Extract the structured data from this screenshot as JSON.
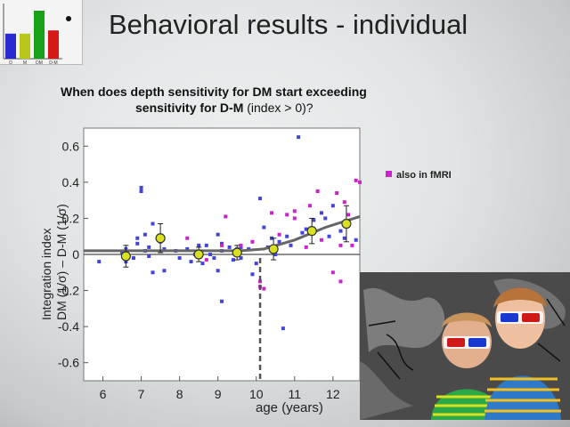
{
  "slide": {
    "title": "Behavioral results - individual",
    "question_bold_1": "When does depth sensitivity for DM start exceeding",
    "question_bold_2": "sensitivity for D-M",
    "question_plain_2": " (index > 0)?"
  },
  "thumbnail": {
    "bar_labels": [
      "D",
      "M",
      "DM",
      "D-M"
    ],
    "bar_colors": [
      "#2a2ad0",
      "#b8c818",
      "#18a018",
      "#d81818"
    ],
    "bar_values": [
      0.47,
      0.47,
      0.9,
      0.53
    ]
  },
  "legend": {
    "marker_color": "#d020d0",
    "label": "also in fMRI"
  },
  "chart_data": {
    "type": "scatter",
    "ylabel_line1": "Integration index",
    "ylabel_line2": "DM (1/σ) – D-M (1/σ)",
    "xlabel": "age (years)",
    "xlim": [
      5.5,
      12.7
    ],
    "ylim": [
      -0.7,
      0.7
    ],
    "x_ticks": [
      6,
      7,
      8,
      9,
      10,
      11,
      12
    ],
    "y_ticks": [
      0.6,
      0.4,
      0.2,
      0,
      -0.2,
      -0.4,
      -0.6
    ],
    "reference_line_y": 0,
    "threshold_age": 10.1,
    "colors": {
      "individual": "#4444dd",
      "fmri": "#cc22cc",
      "mean": "#d8e020",
      "fit": "#666666"
    },
    "individuals": [
      [
        5.9,
        -0.04
      ],
      [
        6.5,
        0.01
      ],
      [
        6.6,
        -0.04
      ],
      [
        6.6,
        0.03
      ],
      [
        6.8,
        -0.02
      ],
      [
        6.9,
        0.09
      ],
      [
        6.9,
        0.06
      ],
      [
        7.0,
        0.35
      ],
      [
        7.0,
        0.37
      ],
      [
        7.1,
        0.11
      ],
      [
        7.1,
        0.02
      ],
      [
        7.2,
        0.04
      ],
      [
        7.2,
        -0.01
      ],
      [
        7.3,
        0.17
      ],
      [
        7.3,
        -0.1
      ],
      [
        7.5,
        0.07
      ],
      [
        7.6,
        -0.09
      ],
      [
        7.6,
        0.03
      ],
      [
        7.9,
        0.02
      ],
      [
        8.0,
        -0.02
      ],
      [
        8.2,
        0.03
      ],
      [
        8.3,
        -0.04
      ],
      [
        8.4,
        0.0
      ],
      [
        8.5,
        0.05
      ],
      [
        8.6,
        -0.05
      ],
      [
        8.7,
        0.05
      ],
      [
        8.8,
        0.0
      ],
      [
        8.9,
        -0.02
      ],
      [
        9.0,
        -0.09
      ],
      [
        9.0,
        0.11
      ],
      [
        9.1,
        0.06
      ],
      [
        9.1,
        -0.26
      ],
      [
        9.1,
        0.02
      ],
      [
        9.3,
        0.04
      ],
      [
        9.4,
        -0.03
      ],
      [
        9.5,
        0.03
      ],
      [
        9.6,
        -0.02
      ],
      [
        9.6,
        0.04
      ],
      [
        9.8,
        0.03
      ],
      [
        9.9,
        -0.11
      ],
      [
        10.0,
        -0.05
      ],
      [
        10.1,
        0.31
      ],
      [
        10.2,
        0.15
      ],
      [
        10.3,
        0.04
      ],
      [
        10.4,
        0.09
      ],
      [
        10.5,
        0.0
      ],
      [
        10.6,
        0.07
      ],
      [
        10.7,
        -0.41
      ],
      [
        10.8,
        0.1
      ],
      [
        10.9,
        0.05
      ],
      [
        11.1,
        0.65
      ],
      [
        11.2,
        0.12
      ],
      [
        11.3,
        0.14
      ],
      [
        11.5,
        0.19
      ],
      [
        11.7,
        0.23
      ],
      [
        11.8,
        0.2
      ],
      [
        11.9,
        0.1
      ],
      [
        12.0,
        0.27
      ],
      [
        12.2,
        0.13
      ],
      [
        12.3,
        0.09
      ],
      [
        12.4,
        0.17
      ],
      [
        12.6,
        0.08
      ]
    ],
    "fmri_individuals": [
      [
        8.2,
        0.09
      ],
      [
        8.7,
        -0.03
      ],
      [
        9.1,
        0.05
      ],
      [
        9.2,
        0.21
      ],
      [
        9.6,
        0.05
      ],
      [
        9.9,
        0.07
      ],
      [
        10.1,
        -0.15
      ],
      [
        10.1,
        -0.18
      ],
      [
        10.2,
        -0.19
      ],
      [
        10.4,
        0.23
      ],
      [
        10.6,
        0.11
      ],
      [
        10.8,
        0.22
      ],
      [
        11.0,
        0.2
      ],
      [
        11.0,
        0.24
      ],
      [
        11.3,
        0.04
      ],
      [
        11.4,
        0.27
      ],
      [
        11.6,
        0.35
      ],
      [
        11.7,
        0.08
      ],
      [
        12.0,
        -0.1
      ],
      [
        12.1,
        0.34
      ],
      [
        12.2,
        -0.15
      ],
      [
        12.2,
        0.05
      ],
      [
        12.3,
        0.29
      ],
      [
        12.4,
        0.22
      ],
      [
        12.5,
        0.05
      ],
      [
        12.6,
        0.41
      ],
      [
        12.7,
        0.4
      ]
    ],
    "group_means": [
      {
        "x": 6.6,
        "y": -0.01,
        "err": 0.06
      },
      {
        "x": 7.5,
        "y": 0.09,
        "err": 0.08
      },
      {
        "x": 8.5,
        "y": 0.0,
        "err": 0.04
      },
      {
        "x": 9.5,
        "y": 0.01,
        "err": 0.04
      },
      {
        "x": 10.45,
        "y": 0.03,
        "err": 0.06
      },
      {
        "x": 11.45,
        "y": 0.13,
        "err": 0.07
      },
      {
        "x": 12.35,
        "y": 0.17,
        "err": 0.1
      }
    ],
    "fit_line": [
      [
        5.5,
        0.02
      ],
      [
        9.6,
        0.02
      ],
      [
        10.2,
        0.03
      ],
      [
        11.0,
        0.08
      ],
      [
        11.8,
        0.15
      ],
      [
        12.7,
        0.21
      ]
    ]
  }
}
